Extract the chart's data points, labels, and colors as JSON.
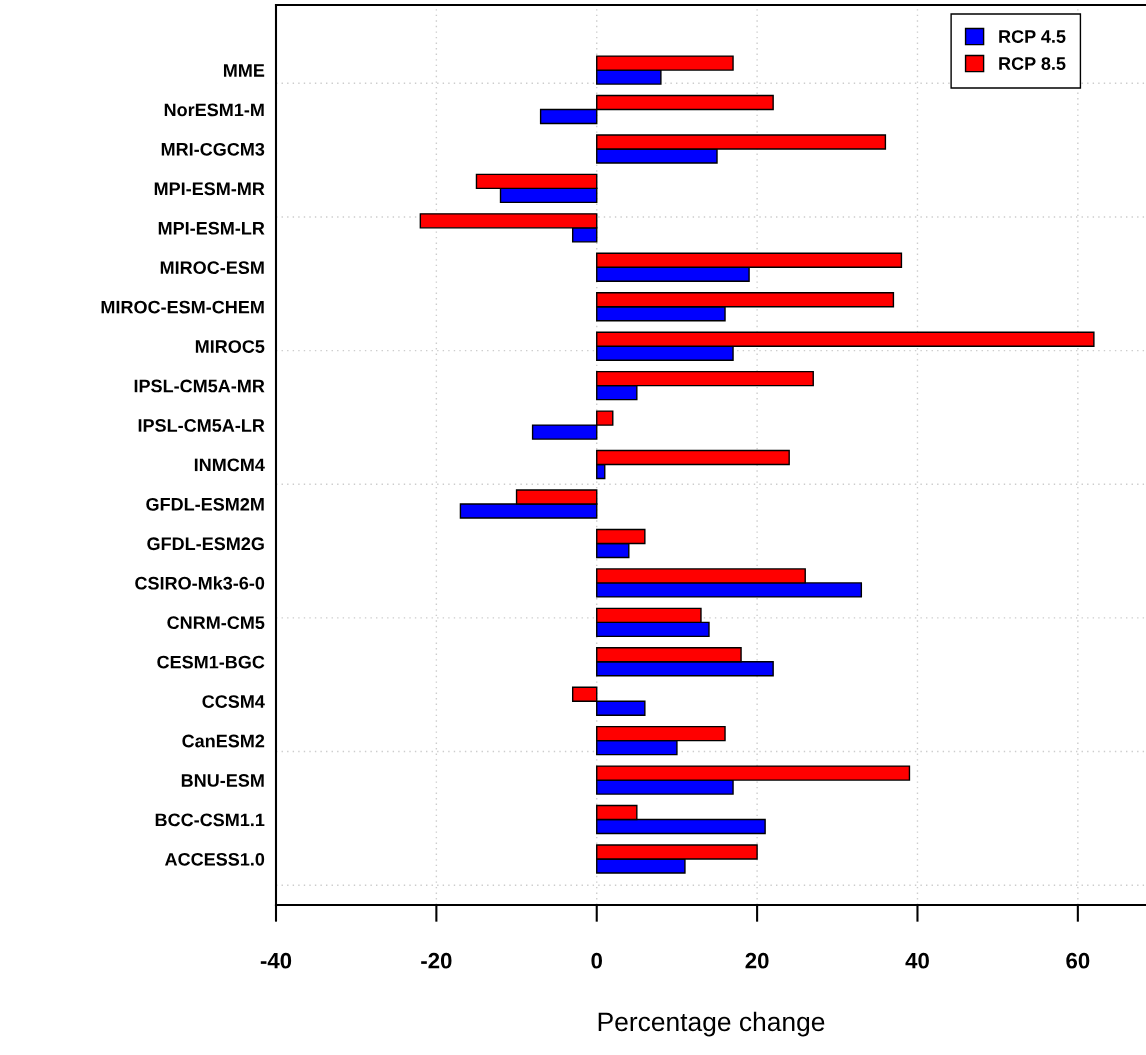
{
  "chart_data": {
    "type": "bar",
    "orientation": "horizontal",
    "xlabel": "Percentage change",
    "categories": [
      "MME",
      "NorESM1-M",
      "MRI-CGCM3",
      "MPI-ESM-MR",
      "MPI-ESM-LR",
      "MIROC-ESM",
      "MIROC-ESM-CHEM",
      "MIROC5",
      "IPSL-CM5A-MR",
      "IPSL-CM5A-LR",
      "INMCM4",
      "GFDL-ESM2M",
      "GFDL-ESM2G",
      "CSIRO-Mk3-6-0",
      "CNRM-CM5",
      "CESM1-BGC",
      "CCSM4",
      "CanESM2",
      "BNU-ESM",
      "BCC-CSM1.1",
      "ACCESS1.0"
    ],
    "series": [
      {
        "name": "RCP 4.5",
        "color": "#0000ff",
        "values": [
          8,
          -7,
          15,
          -12,
          -3,
          19,
          16,
          17,
          5,
          -8,
          1,
          -17,
          4,
          33,
          14,
          22,
          6,
          10,
          17,
          21,
          11
        ]
      },
      {
        "name": "RCP 8.5",
        "color": "#ff0000",
        "values": [
          17,
          22,
          36,
          -15,
          -22,
          38,
          37,
          62,
          27,
          2,
          24,
          -10,
          6,
          26,
          13,
          18,
          -3,
          16,
          39,
          5,
          20
        ]
      }
    ],
    "xlim": [
      -40,
      68.5
    ],
    "xticks": [
      -40,
      -20,
      0,
      20,
      40,
      60
    ],
    "grid": true,
    "legend": "top right"
  }
}
